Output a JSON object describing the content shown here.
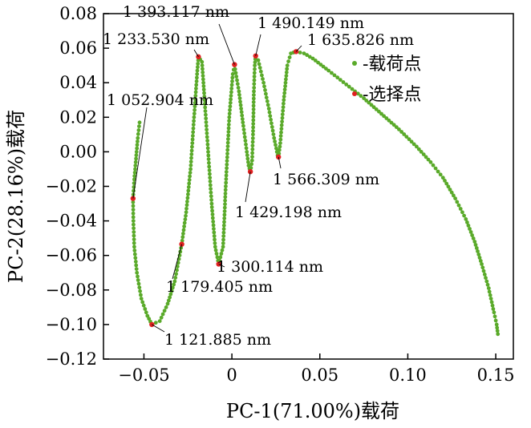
{
  "chart_data": {
    "type": "scatter",
    "xlabel": "PC-1(71.00%)载荷",
    "ylabel": "PC-2(28.16%)载荷",
    "xlim": [
      -0.073,
      0.16
    ],
    "ylim": [
      -0.12,
      0.08
    ],
    "xticks": [
      {
        "value": -0.05,
        "label": "−0.05"
      },
      {
        "value": 0,
        "label": "0"
      },
      {
        "value": 0.05,
        "label": "0.05"
      },
      {
        "value": 0.1,
        "label": "0.10"
      },
      {
        "value": 0.15,
        "label": "0.15"
      }
    ],
    "yticks": [
      {
        "value": 0.08,
        "label": "0.08"
      },
      {
        "value": 0.06,
        "label": "0.06"
      },
      {
        "value": 0.04,
        "label": "0.04"
      },
      {
        "value": 0.02,
        "label": "0.02"
      },
      {
        "value": 0.0,
        "label": "0.00"
      },
      {
        "value": -0.02,
        "label": "−0.02"
      },
      {
        "value": -0.04,
        "label": "−0.04"
      },
      {
        "value": -0.06,
        "label": "−0.06"
      },
      {
        "value": -0.08,
        "label": "−0.08"
      },
      {
        "value": -0.1,
        "label": "−0.10"
      },
      {
        "value": -0.12,
        "label": "−0.12"
      }
    ],
    "legend": {
      "placement": "top-right",
      "entries": [
        {
          "label": "-载荷点",
          "color": "#5aaa2a"
        },
        {
          "label": "-选择点",
          "color": "#e02020"
        }
      ]
    },
    "colors": {
      "loading": "#5aaa2a",
      "selected": "#e02020",
      "line": "#5aaa2a"
    },
    "series": [
      {
        "name": "载荷点",
        "trajectory": [
          [
            -0.0525,
            0.017
          ],
          [
            -0.0535,
            0.008
          ],
          [
            -0.0545,
            -0.004
          ],
          [
            -0.0555,
            -0.016
          ],
          [
            -0.0562,
            -0.027
          ],
          [
            -0.056,
            -0.04
          ],
          [
            -0.0555,
            -0.055
          ],
          [
            -0.054,
            -0.07
          ],
          [
            -0.0515,
            -0.085
          ],
          [
            -0.048,
            -0.095
          ],
          [
            -0.0455,
            -0.1
          ],
          [
            -0.041,
            -0.098
          ],
          [
            -0.0365,
            -0.088
          ],
          [
            -0.0325,
            -0.075
          ],
          [
            -0.0285,
            -0.0535
          ],
          [
            -0.026,
            -0.035
          ],
          [
            -0.0235,
            -0.01
          ],
          [
            -0.0215,
            0.02
          ],
          [
            -0.0198,
            0.045
          ],
          [
            -0.019,
            0.055
          ],
          [
            -0.017,
            0.052
          ],
          [
            -0.0155,
            0.03
          ],
          [
            -0.0135,
            0.0
          ],
          [
            -0.0115,
            -0.03
          ],
          [
            -0.0095,
            -0.055
          ],
          [
            -0.0075,
            -0.065
          ],
          [
            -0.005,
            -0.055
          ],
          [
            -0.0035,
            -0.02
          ],
          [
            -0.0015,
            0.02
          ],
          [
            0.0005,
            0.045
          ],
          [
            0.0015,
            0.05
          ],
          [
            0.004,
            0.035
          ],
          [
            0.0065,
            0.015
          ],
          [
            0.0085,
            0.0
          ],
          [
            0.0095,
            -0.008
          ],
          [
            0.0105,
            -0.0115
          ],
          [
            0.0115,
            -0.005
          ],
          [
            0.012,
            0.01
          ],
          [
            0.0125,
            0.035
          ],
          [
            0.013,
            0.05
          ],
          [
            0.0135,
            0.0555
          ],
          [
            0.015,
            0.053
          ],
          [
            0.018,
            0.04
          ],
          [
            0.021,
            0.025
          ],
          [
            0.024,
            0.008
          ],
          [
            0.026,
            -0.002
          ],
          [
            0.0265,
            -0.003
          ],
          [
            0.0275,
            0.005
          ],
          [
            0.0295,
            0.03
          ],
          [
            0.0315,
            0.05
          ],
          [
            0.0335,
            0.057
          ],
          [
            0.0365,
            0.058
          ],
          [
            0.041,
            0.057
          ],
          [
            0.046,
            0.054
          ],
          [
            0.055,
            0.047
          ],
          [
            0.065,
            0.039
          ],
          [
            0.075,
            0.031
          ],
          [
            0.085,
            0.022
          ],
          [
            0.095,
            0.013
          ],
          [
            0.105,
            0.003
          ],
          [
            0.113,
            -0.006
          ],
          [
            0.12,
            -0.015
          ],
          [
            0.127,
            -0.027
          ],
          [
            0.133,
            -0.039
          ],
          [
            0.138,
            -0.052
          ],
          [
            0.142,
            -0.065
          ],
          [
            0.146,
            -0.079
          ],
          [
            0.149,
            -0.093
          ],
          [
            0.1505,
            -0.1
          ],
          [
            0.1512,
            -0.1055
          ]
        ]
      },
      {
        "name": "选择点",
        "points": [
          {
            "x": -0.0562,
            "y": -0.027,
            "label": "1 052.904 nm"
          },
          {
            "x": -0.0455,
            "y": -0.1,
            "label": "1 121.885 nm"
          },
          {
            "x": -0.0285,
            "y": -0.0535,
            "label": "1 179.405 nm"
          },
          {
            "x": -0.019,
            "y": 0.055,
            "label": "1 233.530 nm"
          },
          {
            "x": -0.0075,
            "y": -0.065,
            "label": "1 300.114 nm"
          },
          {
            "x": 0.0015,
            "y": 0.0505,
            "label": "1 393.117 nm"
          },
          {
            "x": 0.0105,
            "y": -0.0115,
            "label": "1 429.198 nm"
          },
          {
            "x": 0.0135,
            "y": 0.0555,
            "label": "1 490.149 nm"
          },
          {
            "x": 0.0265,
            "y": -0.003,
            "label": "1 566.309 nm"
          },
          {
            "x": 0.0365,
            "y": 0.058,
            "label": "1 635.826 nm"
          }
        ]
      }
    ]
  }
}
